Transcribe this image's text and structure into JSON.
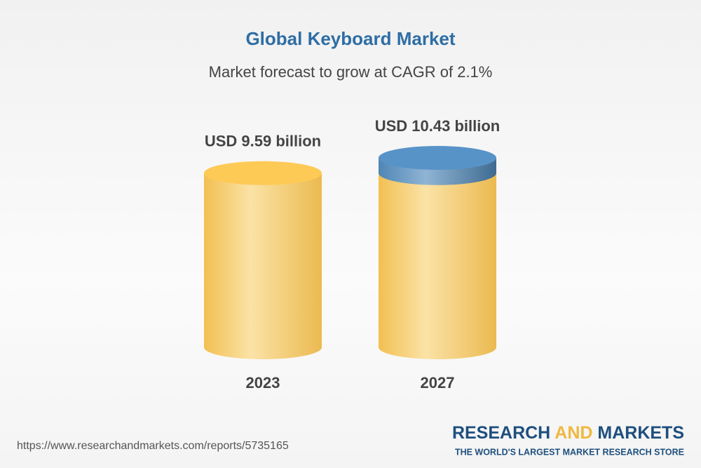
{
  "chart_data": {
    "type": "bar",
    "title": "Global Keyboard Market",
    "subtitle": "Market forecast to grow at CAGR of 2.1%",
    "categories": [
      "2023",
      "2027"
    ],
    "values": [
      9.59,
      10.43
    ],
    "value_labels": [
      "USD 9.59 billion",
      "USD 10.43 billion"
    ],
    "color": "#f2c052",
    "growth_color": "#4f86b5"
  },
  "footer": {
    "url": "https://www.researchandmarkets.com/reports/5735165",
    "brand": [
      "RESEARCH",
      "AND",
      "MARKETS"
    ],
    "tagline": "THE WORLD'S LARGEST MARKET RESEARCH STORE"
  }
}
